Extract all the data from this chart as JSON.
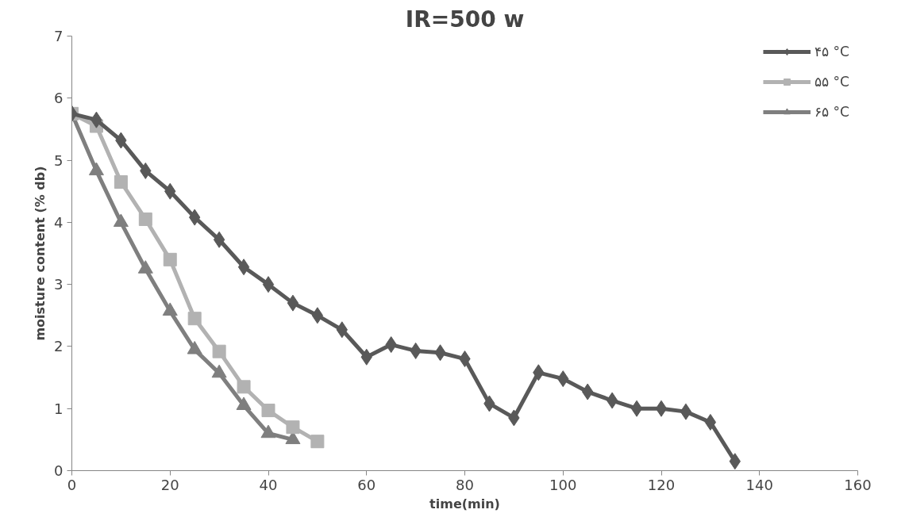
{
  "chart_data": {
    "type": "line",
    "title": "IR=500 w",
    "xlabel": "time(min)",
    "ylabel": "moisture content (% db)",
    "xlim": [
      0,
      160
    ],
    "xticks": [
      0,
      20,
      40,
      60,
      80,
      100,
      120,
      140,
      160
    ],
    "ylim": [
      0,
      7
    ],
    "yticks": [
      0,
      1,
      2,
      3,
      4,
      5,
      6,
      7
    ],
    "grid": false,
    "legend": "top right",
    "line_style": "solid",
    "series": [
      {
        "name": "۴۵ °C",
        "color": "#595959",
        "marker": "diamond",
        "x": [
          0,
          5,
          10,
          15,
          20,
          25,
          30,
          35,
          40,
          45,
          50,
          55,
          60,
          65,
          70,
          75,
          80,
          85,
          90,
          95,
          100,
          105,
          110,
          115,
          120,
          125,
          130,
          135
        ],
        "values": [
          5.75,
          5.65,
          5.32,
          4.83,
          4.5,
          4.08,
          3.72,
          3.28,
          3.0,
          2.7,
          2.5,
          2.27,
          1.83,
          2.03,
          1.93,
          1.9,
          1.8,
          1.08,
          0.85,
          1.58,
          1.48,
          1.27,
          1.13,
          1.0,
          1.0,
          0.95,
          0.78,
          0.15
        ]
      },
      {
        "name": "۵۵ °C",
        "color": "#b2b2b2",
        "marker": "square",
        "x": [
          0,
          5,
          10,
          15,
          20,
          25,
          30,
          35,
          40,
          45,
          50
        ],
        "values": [
          5.75,
          5.55,
          4.65,
          4.05,
          3.4,
          2.45,
          1.92,
          1.35,
          0.97,
          0.7,
          0.47
        ]
      },
      {
        "name": "۶۵ °C",
        "color": "#7f7f7f",
        "marker": "triangle",
        "x": [
          0,
          5,
          10,
          15,
          20,
          25,
          30,
          35,
          40,
          45
        ],
        "values": [
          5.75,
          4.83,
          4.0,
          3.25,
          2.57,
          1.95,
          1.57,
          1.05,
          0.6,
          0.5
        ]
      }
    ]
  }
}
